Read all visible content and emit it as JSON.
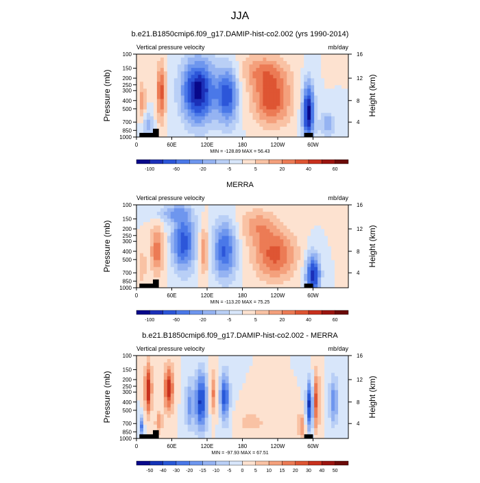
{
  "figure": {
    "title": "JJA"
  },
  "colors": {
    "seq": [
      "#08088a",
      "#1b30b8",
      "#2c56d9",
      "#4a78e8",
      "#6e96ee",
      "#95b3f2",
      "#b9cff6",
      "#d8e6fa",
      "#fde2d0",
      "#f9c2a4",
      "#f4a07c",
      "#ec7b55",
      "#de5533",
      "#c8301d",
      "#9b140f",
      "#6b0a08"
    ],
    "diff": [
      "#08088a",
      "#1433b6",
      "#2858d8",
      "#4a78e8",
      "#6e96ee",
      "#95b3f2",
      "#b9cff6",
      "#d8e6fa",
      "#fde2d0",
      "#f9c2a4",
      "#f4a07c",
      "#ec7b55",
      "#de5533",
      "#c8301d",
      "#9b140f",
      "#6b0a08"
    ]
  },
  "chart_data": [
    {
      "type": "heatmap",
      "title": "b.e21.B1850cmip6.f09_g17.DAMIP-hist-co2.002 (yrs 1990-2014)",
      "left_label": "Vertical pressure velocity",
      "right_label": "mb/day",
      "ylabel": "Pressure (mb)",
      "y2label": "Height (km)",
      "pressure_ticks": [
        "100",
        "150",
        "200",
        "250",
        "300",
        "400",
        "500",
        "700",
        "850",
        "1000"
      ],
      "height_ticks": [
        "4",
        "8",
        "12",
        "16"
      ],
      "lon_ticks": [
        "0",
        "60E",
        "120E",
        "180",
        "120W",
        "60W"
      ],
      "stats": "MIN = -128.89  MAX =  56.43",
      "colorbar_labels": [
        "-100",
        "-60",
        "-20",
        "-5",
        "5",
        "20",
        "40",
        "60"
      ],
      "palette": "seq",
      "ylim": [
        1000,
        100
      ]
    },
    {
      "type": "heatmap",
      "title": "MERRA",
      "left_label": "Vertical pressure velocity",
      "right_label": "mb/day",
      "ylabel": "Pressure (mb)",
      "y2label": "Height (km)",
      "pressure_ticks": [
        "100",
        "150",
        "200",
        "250",
        "300",
        "400",
        "500",
        "700",
        "850",
        "1000"
      ],
      "height_ticks": [
        "4",
        "8",
        "12",
        "16"
      ],
      "lon_ticks": [
        "0",
        "60E",
        "120E",
        "180",
        "120W",
        "60W"
      ],
      "stats": "MIN = -113.20  MAX =  75.25",
      "colorbar_labels": [
        "-100",
        "-60",
        "-20",
        "-5",
        "5",
        "20",
        "40",
        "60"
      ],
      "palette": "seq",
      "ylim": [
        1000,
        100
      ]
    },
    {
      "type": "heatmap",
      "title": "b.e21.B1850cmip6.f09_g17.DAMIP-hist-co2.002 - MERRA",
      "left_label": "Vertical pressure velocity",
      "right_label": "mb/day",
      "ylabel": "Pressure (mb)",
      "y2label": "Height (km)",
      "pressure_ticks": [
        "100",
        "150",
        "200",
        "250",
        "300",
        "400",
        "500",
        "700",
        "850",
        "1000"
      ],
      "height_ticks": [
        "4",
        "8",
        "12",
        "16"
      ],
      "lon_ticks": [
        "0",
        "60E",
        "120E",
        "180",
        "120W",
        "60W"
      ],
      "stats": "MIN = -97.93  MAX =  67.51",
      "colorbar_labels": [
        "-50",
        "-40",
        "-30",
        "-20",
        "-15",
        "-10",
        "-5",
        "0",
        "5",
        "10",
        "15",
        "20",
        "30",
        "40",
        "50"
      ],
      "palette": "diff",
      "ylim": [
        1000,
        100
      ]
    }
  ]
}
